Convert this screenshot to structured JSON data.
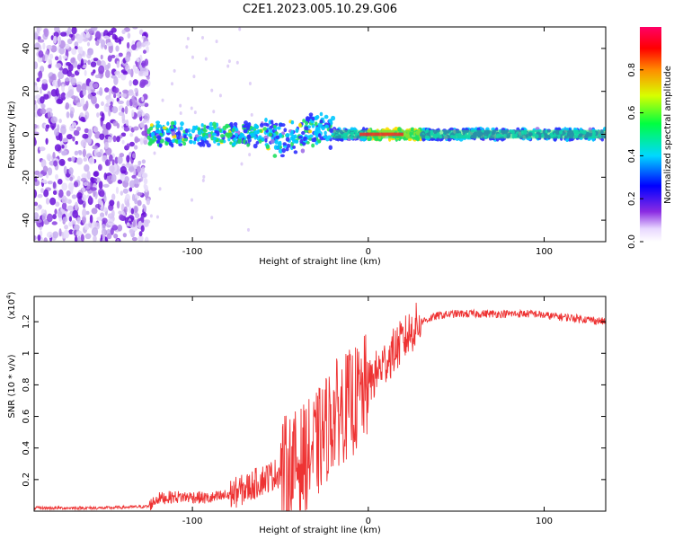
{
  "title": "C2E1.2023.005.10.29.G06",
  "chart_data": [
    {
      "type": "heatmap",
      "xlabel": "Height of straight line (km)",
      "ylabel": "Frequency (Hz)",
      "xlim": [
        -190,
        135
      ],
      "ylim": [
        -50,
        50
      ],
      "xticks": [
        -100,
        0,
        100
      ],
      "yticks": [
        -40,
        -20,
        0,
        20,
        40
      ],
      "colorbar": {
        "label": "Normalized spectral amplitude",
        "range": [
          0.0,
          1.0
        ],
        "ticks": [
          0.0,
          0.2,
          0.4,
          0.6,
          0.8
        ],
        "colormap": "rainbow (purple to red)"
      },
      "features": {
        "noise_region_x": [
          -190,
          -125
        ],
        "signal_band_x": [
          -125,
          135
        ],
        "signal_center_hz": 0,
        "peak_amplitude_x": [
          0,
          30
        ]
      }
    },
    {
      "type": "line",
      "xlabel": "Height of straight line (km)",
      "ylabel": "SNR (10 * v/v)",
      "scale_note": "(x10",
      "scale_exp": "4",
      "xlim": [
        -190,
        135
      ],
      "ylim": [
        0,
        1.36
      ],
      "xticks": [
        -100,
        0,
        100
      ],
      "yticks": [
        0.2,
        0.4,
        0.6,
        0.8,
        1.0,
        1.2
      ],
      "series": [
        {
          "color": "#ee3333",
          "x": [
            -190,
            -150,
            -125,
            -120,
            -110,
            -100,
            -90,
            -80,
            -70,
            -60,
            -50,
            -40,
            -30,
            -25,
            -20,
            -15,
            -10,
            -5,
            0,
            5,
            10,
            15,
            20,
            25,
            30,
            35,
            40,
            50,
            60,
            80,
            95,
            100,
            110,
            120,
            135
          ],
          "y": [
            0.02,
            0.02,
            0.03,
            0.08,
            0.09,
            0.09,
            0.08,
            0.1,
            0.14,
            0.2,
            0.25,
            0.3,
            0.4,
            0.5,
            0.6,
            0.65,
            0.68,
            0.72,
            0.8,
            0.88,
            0.95,
            1.02,
            1.08,
            1.15,
            1.2,
            1.22,
            1.24,
            1.25,
            1.25,
            1.25,
            1.25,
            1.24,
            1.23,
            1.22,
            1.2
          ]
        }
      ]
    }
  ]
}
